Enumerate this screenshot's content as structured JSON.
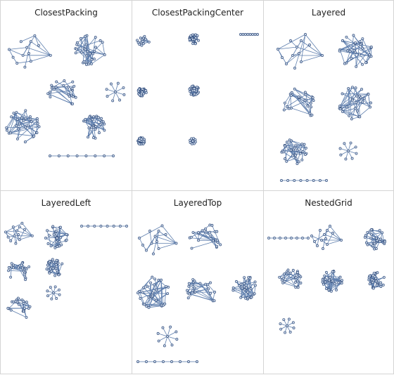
{
  "colors": {
    "edge": "#5f7fae",
    "node_fill": "#c9d6e8",
    "node_stroke": "#35507e",
    "border": "#d4d4d4"
  },
  "panels": [
    {
      "title": "ClosestPacking"
    },
    {
      "title": "ClosestPackingCenter"
    },
    {
      "title": "Layered"
    },
    {
      "title": "LayeredLeft"
    },
    {
      "title": "LayeredTop"
    },
    {
      "title": "NestedGrid"
    }
  ]
}
